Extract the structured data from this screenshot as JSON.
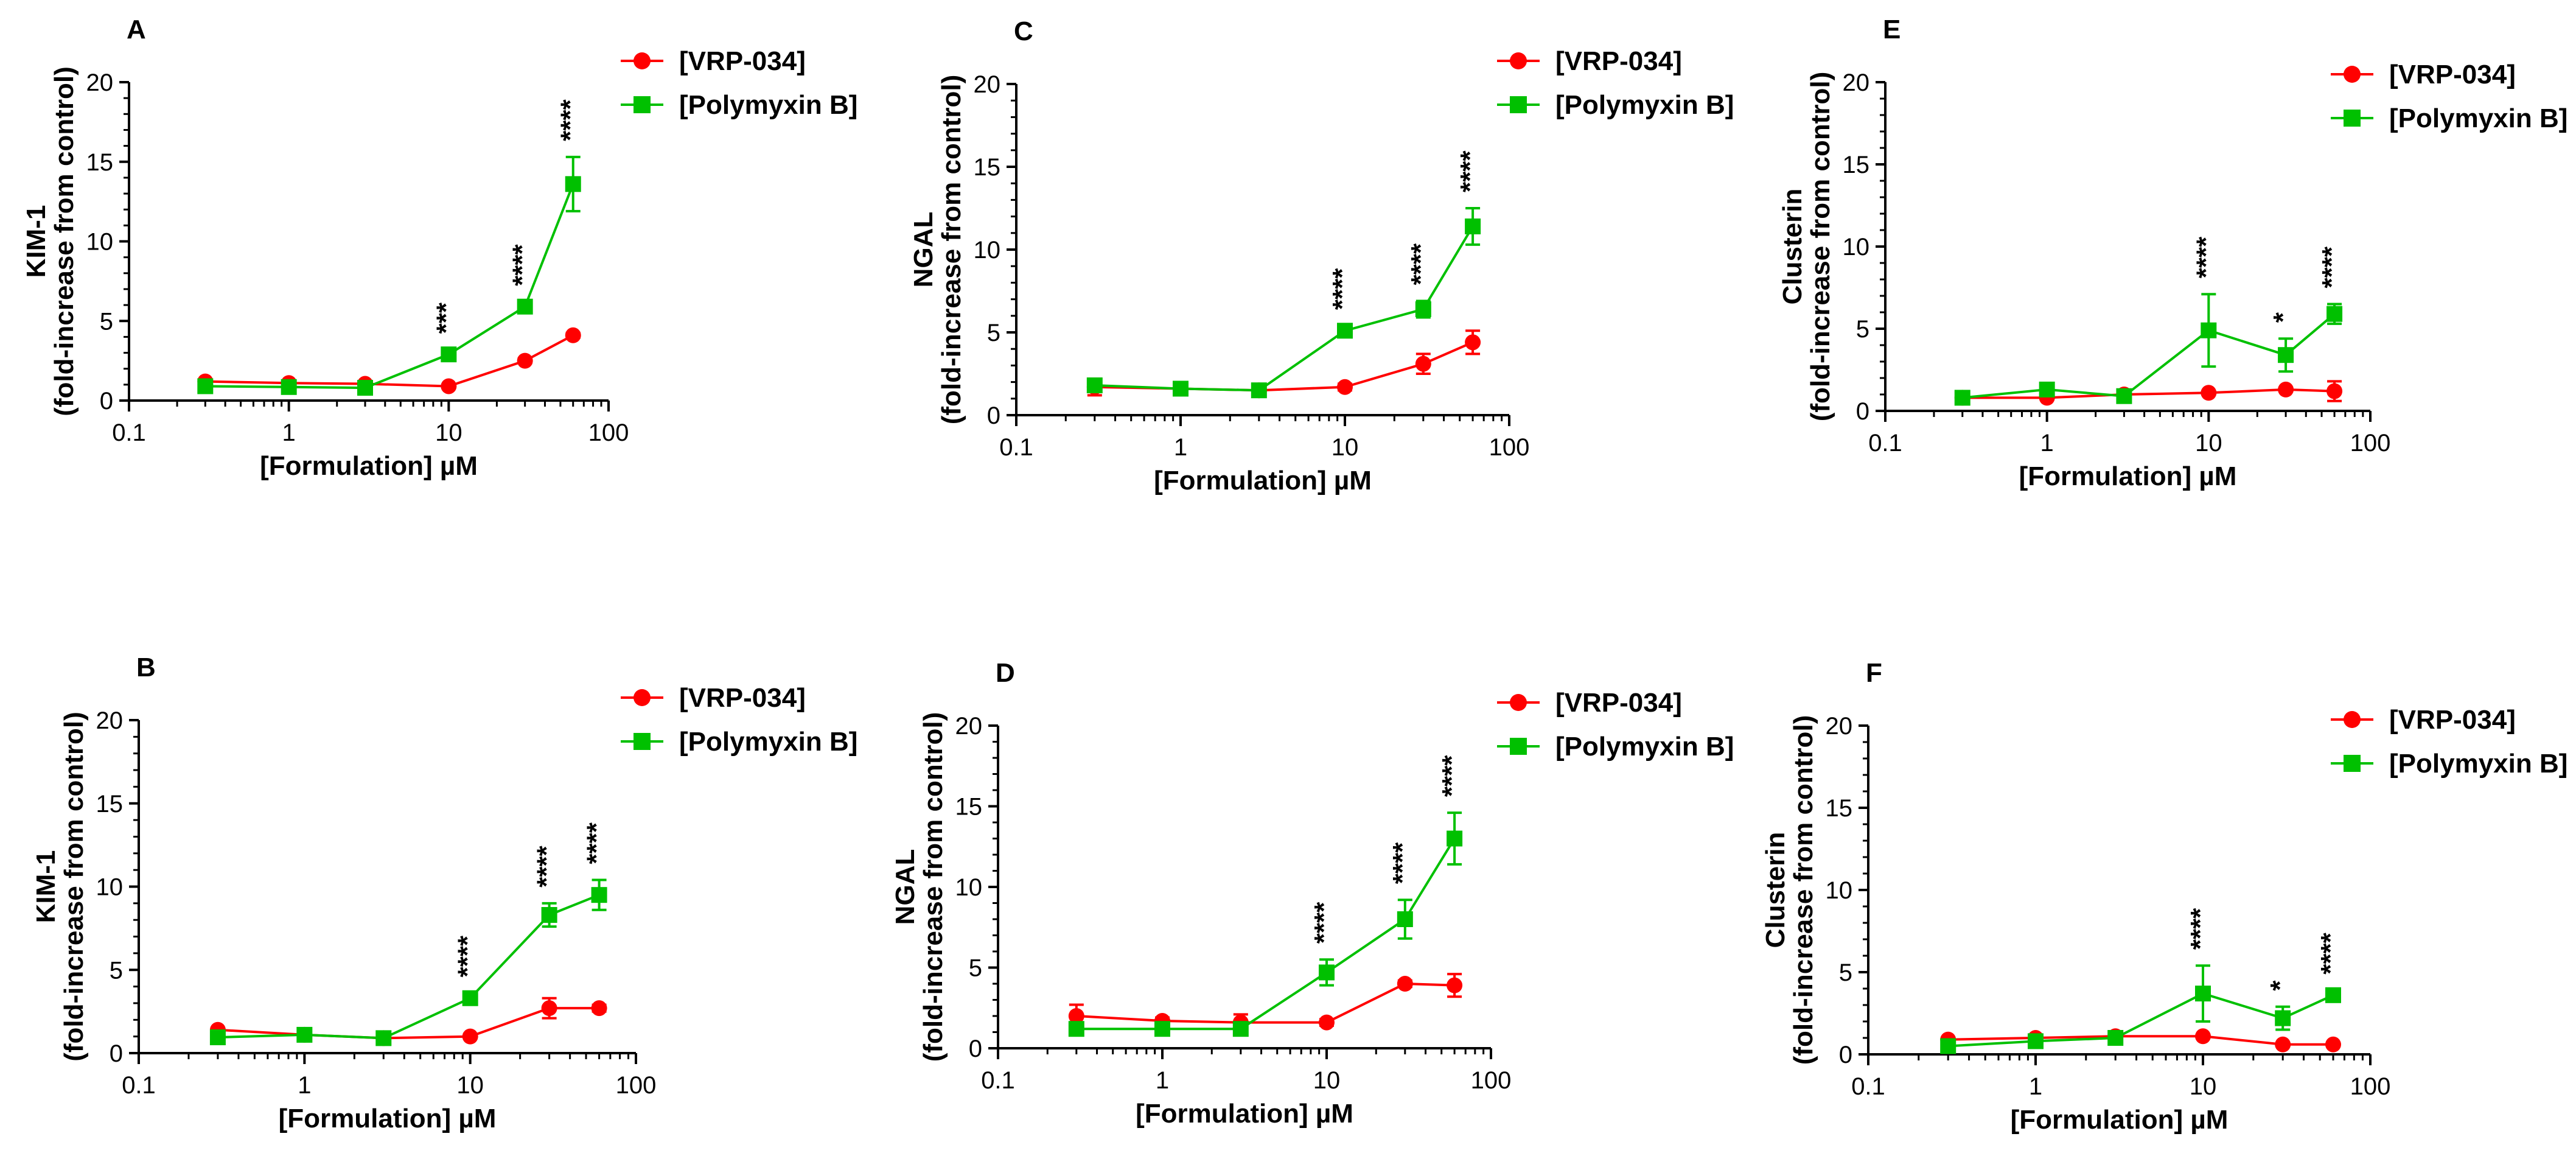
{
  "figure": {
    "xlabel": "[Formulation] µM",
    "x_ticks": [
      "0.1",
      "1",
      "10",
      "100"
    ],
    "y_ticks": [
      "0",
      "5",
      "10",
      "15",
      "20"
    ],
    "ylim": [
      0,
      20
    ],
    "xlim": [
      0.1,
      100
    ],
    "x_scale": "log",
    "series_colors": {
      "VRP-034": "#ff0000",
      "Polymyxin B": "#00c000"
    }
  },
  "chart_data": [
    {
      "panel": "A",
      "type": "line",
      "ylabel_line1": "KIM-1",
      "ylabel_line2": "(fold-increase from control)",
      "x": [
        0.3,
        1,
        3,
        10,
        30,
        60
      ],
      "series": [
        {
          "name": "[VRP-034]",
          "marker": "circle",
          "color": "#ff0000",
          "values": [
            1.2,
            1.1,
            1.05,
            0.9,
            2.5,
            4.1
          ],
          "errors": [
            0.1,
            0.1,
            0.1,
            0.1,
            0.15,
            0.15
          ]
        },
        {
          "name": "[Polymyxin B]",
          "marker": "square",
          "color": "#00c000",
          "values": [
            0.9,
            0.85,
            0.8,
            2.9,
            5.9,
            13.6
          ],
          "errors": [
            0.1,
            0.1,
            0.1,
            0.3,
            0.3,
            1.7
          ]
        }
      ],
      "annotations": [
        {
          "x": 10,
          "label": "***"
        },
        {
          "x": 30,
          "label": "****"
        },
        {
          "x": 60,
          "label": "****"
        }
      ]
    },
    {
      "panel": "B",
      "type": "line",
      "ylabel_line1": "KIM-1",
      "ylabel_line2": "(fold-increase from control)",
      "x": [
        0.3,
        1,
        3,
        10,
        30,
        60
      ],
      "series": [
        {
          "name": "[VRP-034]",
          "marker": "circle",
          "color": "#ff0000",
          "values": [
            1.4,
            1.1,
            0.9,
            1.0,
            2.7,
            2.7
          ],
          "errors": [
            0.1,
            0.1,
            0.1,
            0.1,
            0.6,
            0.2
          ]
        },
        {
          "name": "[Polymyxin B]",
          "marker": "square",
          "color": "#00c000",
          "values": [
            0.95,
            1.1,
            0.9,
            3.3,
            8.3,
            9.5
          ],
          "errors": [
            0.1,
            0.1,
            0.1,
            0.3,
            0.7,
            0.9
          ]
        }
      ],
      "annotations": [
        {
          "x": 10,
          "label": "****"
        },
        {
          "x": 30,
          "label": "****"
        },
        {
          "x": 60,
          "label": "****"
        }
      ]
    },
    {
      "panel": "C",
      "type": "line",
      "ylabel_line1": "NGAL",
      "ylabel_line2": "(fold-increase from control)",
      "x": [
        0.3,
        1,
        3,
        10,
        30,
        60
      ],
      "series": [
        {
          "name": "[VRP-034]",
          "marker": "circle",
          "color": "#ff0000",
          "values": [
            1.7,
            1.6,
            1.5,
            1.7,
            3.1,
            4.4
          ],
          "errors": [
            0.5,
            0.2,
            0.1,
            0.2,
            0.6,
            0.7
          ]
        },
        {
          "name": "[Polymyxin B]",
          "marker": "square",
          "color": "#00c000",
          "values": [
            1.8,
            1.6,
            1.5,
            5.1,
            6.4,
            11.4
          ],
          "errors": [
            0.2,
            0.2,
            0.1,
            0.3,
            0.5,
            1.1
          ]
        }
      ],
      "annotations": [
        {
          "x": 10,
          "label": "****"
        },
        {
          "x": 30,
          "label": "****"
        },
        {
          "x": 60,
          "label": "****"
        }
      ]
    },
    {
      "panel": "D",
      "type": "line",
      "ylabel_line1": "NGAL",
      "ylabel_line2": "(fold-increase from control)",
      "x": [
        0.3,
        1,
        3,
        10,
        30,
        60
      ],
      "series": [
        {
          "name": "[VRP-034]",
          "marker": "circle",
          "color": "#ff0000",
          "values": [
            2.0,
            1.7,
            1.6,
            1.6,
            4.0,
            3.9
          ],
          "errors": [
            0.7,
            0.2,
            0.5,
            0.2,
            0.2,
            0.7
          ]
        },
        {
          "name": "[Polymyxin B]",
          "marker": "square",
          "color": "#00c000",
          "values": [
            1.2,
            1.2,
            1.2,
            4.7,
            8.0,
            13.0
          ],
          "errors": [
            0.2,
            0.2,
            0.2,
            0.8,
            1.2,
            1.6
          ]
        }
      ],
      "annotations": [
        {
          "x": 10,
          "label": "****"
        },
        {
          "x": 30,
          "label": "****"
        },
        {
          "x": 60,
          "label": "****"
        }
      ]
    },
    {
      "panel": "E",
      "type": "line",
      "ylabel_line1": "Clusterin",
      "ylabel_line2": "(fold-increase from control)",
      "x": [
        0.3,
        1,
        3,
        10,
        30,
        60
      ],
      "series": [
        {
          "name": "[VRP-034]",
          "marker": "circle",
          "color": "#ff0000",
          "values": [
            0.8,
            0.8,
            1.0,
            1.1,
            1.3,
            1.2
          ],
          "errors": [
            0.1,
            0.1,
            0.1,
            0.1,
            0.1,
            0.6
          ]
        },
        {
          "name": "[Polymyxin B]",
          "marker": "square",
          "color": "#00c000",
          "values": [
            0.8,
            1.3,
            0.9,
            4.9,
            3.4,
            5.9
          ],
          "errors": [
            0.1,
            0.1,
            0.1,
            2.2,
            1.0,
            0.6
          ]
        }
      ],
      "annotations": [
        {
          "x": 10,
          "label": "****"
        },
        {
          "x": 30,
          "label": "*"
        },
        {
          "x": 60,
          "label": "****"
        }
      ]
    },
    {
      "panel": "F",
      "type": "line",
      "ylabel_line1": "Clusterin",
      "ylabel_line2": "(fold-increase from control)",
      "x": [
        0.3,
        1,
        3,
        10,
        30,
        60
      ],
      "series": [
        {
          "name": "[VRP-034]",
          "marker": "circle",
          "color": "#ff0000",
          "values": [
            0.9,
            1.0,
            1.1,
            1.1,
            0.6,
            0.6
          ],
          "errors": [
            0.1,
            0.1,
            0.1,
            0.1,
            0.1,
            0.1
          ]
        },
        {
          "name": "[Polymyxin B]",
          "marker": "square",
          "color": "#00c000",
          "values": [
            0.5,
            0.8,
            1.0,
            3.7,
            2.2,
            3.6
          ],
          "errors": [
            0.1,
            0.1,
            0.1,
            1.7,
            0.7,
            0.3
          ]
        }
      ],
      "annotations": [
        {
          "x": 10,
          "label": "****"
        },
        {
          "x": 30,
          "label": "*"
        },
        {
          "x": 60,
          "label": "****"
        }
      ]
    }
  ]
}
